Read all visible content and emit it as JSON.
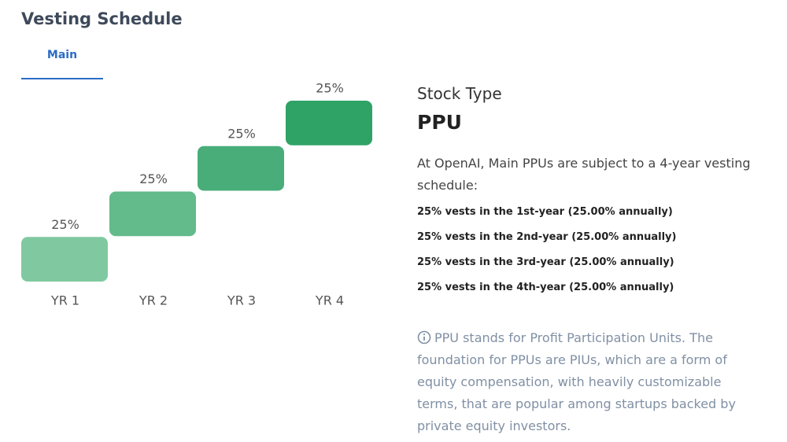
{
  "header": {
    "title": "Vesting Schedule",
    "tabs": [
      "Main"
    ]
  },
  "chart_data": {
    "type": "step",
    "categories": [
      "YR 1",
      "YR 2",
      "YR 3",
      "YR 4"
    ],
    "values": [
      25,
      25,
      25,
      25
    ],
    "value_labels": [
      "25%",
      "25%",
      "25%",
      "25%"
    ],
    "colors": [
      "#80c9a0",
      "#63ba8b",
      "#48ad79",
      "#2fa366"
    ]
  },
  "details": {
    "label": "Stock Type",
    "stock_type": "PPU",
    "description": "At OpenAI, Main PPUs are subject to a 4-year vesting schedule:",
    "schedule": [
      "25% vests in the 1st-year (25.00% annually)",
      "25% vests in the 2nd-year (25.00% annually)",
      "25% vests in the 3rd-year (25.00% annually)",
      "25% vests in the 4th-year (25.00% annually)"
    ],
    "note": "PPU stands for Profit Participation Units. The foundation for PPUs are PIUs, which are a form of equity compensation, with heavily customizable terms, that are popular among startups backed by private equity investors."
  }
}
